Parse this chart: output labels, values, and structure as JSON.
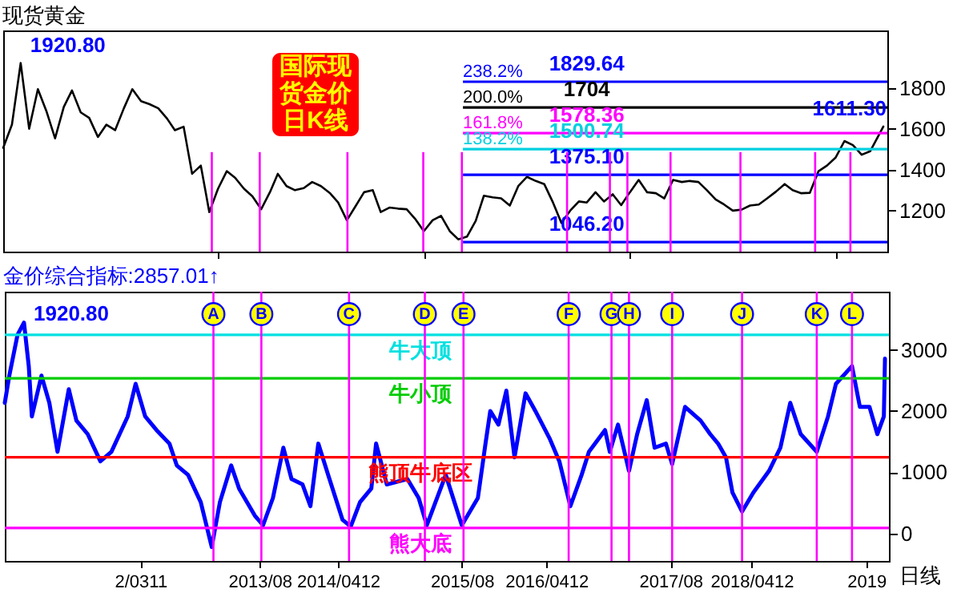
{
  "chart_data": [
    {
      "type": "line",
      "title": "现货黄金",
      "x": [
        "2011-07",
        "2011-08",
        "2011-09",
        "2011-10",
        "2011-11",
        "2011-12",
        "2012-01",
        "2012-02",
        "2012-03",
        "2012-04",
        "2012-05",
        "2012-06",
        "2012-07",
        "2012-08",
        "2012-09",
        "2012-10",
        "2012-11",
        "2012-12",
        "2013-01",
        "2013-02",
        "2013-03",
        "2013-04",
        "2013-05",
        "2013-06",
        "2013-07",
        "2013-08",
        "2013-09",
        "2013-10",
        "2013-11",
        "2013-12",
        "2014-01",
        "2014-02",
        "2014-03",
        "2014-04",
        "2014-05",
        "2014-06",
        "2014-07",
        "2014-08",
        "2014-09",
        "2014-10",
        "2014-11",
        "2014-12",
        "2015-01",
        "2015-02",
        "2015-03",
        "2015-04",
        "2015-05",
        "2015-06",
        "2015-07",
        "2015-08",
        "2015-09",
        "2015-10",
        "2015-11",
        "2015-12",
        "2016-01",
        "2016-02",
        "2016-03",
        "2016-04",
        "2016-05",
        "2016-06",
        "2016-07",
        "2016-08",
        "2016-09",
        "2016-10",
        "2016-11",
        "2016-12",
        "2017-01",
        "2017-02",
        "2017-03",
        "2017-04",
        "2017-05",
        "2017-06",
        "2017-07",
        "2017-08",
        "2017-09",
        "2017-10",
        "2017-11",
        "2017-12",
        "2018-01",
        "2018-02",
        "2018-03",
        "2018-04",
        "2018-05",
        "2018-06",
        "2018-07",
        "2018-08",
        "2018-09",
        "2018-10",
        "2018-11",
        "2018-12",
        "2019-01",
        "2019-02",
        "2019-03",
        "2019-04",
        "2019-05",
        "2019-06",
        "2019-07",
        "2019-08",
        "2019-09",
        "2019-10",
        "2019-11",
        "2019-12",
        "2020-01-17"
      ],
      "series": [
        {
          "color": "#000000",
          "values": [
            1507,
            1620,
            1920.8,
            1600,
            1793,
            1687,
            1553,
            1707,
            1787,
            1680,
            1653,
            1560,
            1620,
            1593,
            1700,
            1793,
            1735,
            1720,
            1700,
            1650,
            1593,
            1610,
            1380,
            1420,
            1193,
            1307,
            1393,
            1360,
            1307,
            1270,
            1207,
            1290,
            1380,
            1320,
            1300,
            1310,
            1340,
            1320,
            1287,
            1240,
            1153,
            1220,
            1290,
            1300,
            1193,
            1215,
            1210,
            1207,
            1160,
            1100,
            1153,
            1175,
            1100,
            1060,
            1073,
            1150,
            1273,
            1265,
            1260,
            1225,
            1320,
            1365,
            1345,
            1330,
            1240,
            1140,
            1200,
            1245,
            1240,
            1290,
            1245,
            1280,
            1227,
            1290,
            1350,
            1290,
            1285,
            1260,
            1350,
            1340,
            1345,
            1340,
            1300,
            1255,
            1230,
            1200,
            1205,
            1225,
            1230,
            1260,
            1293,
            1330,
            1300,
            1285,
            1287,
            1393,
            1420,
            1460,
            1540,
            1520,
            1473,
            1490,
            1611.3
          ]
        }
      ],
      "xticks": [
        {
          "value": "2013-08-01",
          "label": null
        },
        {
          "value": "2015-08-01",
          "label": null
        },
        {
          "value": "2017-08-01",
          "label": null
        },
        {
          "value": "2019-08-01",
          "label": null
        }
      ],
      "xlim": [
        "2011-07-01",
        "2020-01-31"
      ],
      "ylim": [
        1000,
        2080
      ],
      "yticks": [
        1200,
        1400,
        1600,
        1800
      ],
      "tick_labels": "y",
      "ref_lines": [
        {
          "axis": "y",
          "value": 1829.64,
          "label": "1829.64",
          "color": "#0000ff"
        },
        {
          "axis": "y",
          "value": 1704,
          "label": "1704",
          "color": "#000000"
        },
        {
          "axis": "y",
          "value": 1578.36,
          "label": "1578.36",
          "color": "#ff00ff"
        },
        {
          "axis": "y",
          "value": 1500.74,
          "label": "1500.74",
          "color": "#00d0e0"
        },
        {
          "axis": "y",
          "value": 1375.1,
          "label": "1375.10",
          "color": "#0000ff"
        },
        {
          "axis": "y",
          "value": 1046.2,
          "label": "1046.20",
          "color": "#0000ff"
        },
        {
          "axis": "x",
          "value": "2013-07-10",
          "color": "#ff00ff"
        },
        {
          "axis": "x",
          "value": "2013-12-27",
          "color": "#ff00ff"
        },
        {
          "axis": "x",
          "value": "2014-11-03",
          "color": "#ff00ff"
        },
        {
          "axis": "x",
          "value": "2015-07-30",
          "color": "#ff00ff"
        },
        {
          "axis": "x",
          "value": "2015-12-14",
          "color": "#ff00ff"
        },
        {
          "axis": "x",
          "value": "2016-12-21",
          "color": "#ff00ff"
        },
        {
          "axis": "x",
          "value": "2017-05-22",
          "color": "#ff00ff"
        },
        {
          "axis": "x",
          "value": "2017-07-23",
          "color": "#ff00ff"
        },
        {
          "axis": "x",
          "value": "2017-12-23",
          "color": "#ff00ff"
        },
        {
          "axis": "x",
          "value": "2018-08-28",
          "color": "#ff00ff"
        },
        {
          "axis": "x",
          "value": "2019-05-20",
          "color": "#ff00ff"
        },
        {
          "axis": "x",
          "value": "2019-09-22",
          "color": "#ff00ff"
        }
      ],
      "annotations": [
        {
          "text": "1920.80",
          "x": "2011-09",
          "y": 1920.8
        },
        {
          "text": "1611.30",
          "x": "2020-01-17",
          "y": 1611.3
        },
        {
          "text": "238.2%",
          "y": 1829.64
        },
        {
          "text": "200.0%",
          "y": 1704
        },
        {
          "text": "161.8%",
          "y": 1578.36
        },
        {
          "text": "138.2%",
          "y": 1500.74
        },
        "国际现货金价日K线"
      ]
    },
    {
      "type": "line",
      "title": "金价综合指标:2857.01↑",
      "xlabel": "日线",
      "x": [
        "2011-07-01",
        "2011-07-17",
        "2011-08-15",
        "2011-09-07",
        "2011-09-24",
        "2011-10-05",
        "2011-11-08",
        "2011-12-06",
        "2012-01-04",
        "2012-02-13",
        "2012-03-11",
        "2012-04-20",
        "2012-06-04",
        "2012-07-13",
        "2012-09-09",
        "2012-10-07",
        "2012-11-10",
        "2012-12-20",
        "2013-02-04",
        "2013-03-02",
        "2013-04-11",
        "2013-05-26",
        "2013-07-04",
        "2013-08-02",
        "2013-09-11",
        "2013-10-09",
        "2013-12-04",
        "2014-01-02",
        "2014-02-06",
        "2014-03-15",
        "2014-04-13",
        "2014-05-22",
        "2014-06-19",
        "2014-07-17",
        "2014-08-21",
        "2014-10-11",
        "2014-11-09",
        "2014-12-12",
        "2015-01-21",
        "2015-02-07",
        "2015-03-17",
        "2015-05-29",
        "2015-07-08",
        "2015-08-06",
        "2015-10-12",
        "2015-12-08",
        "2016-02-03",
        "2016-03-01",
        "2016-03-18",
        "2016-04-16",
        "2016-05-14",
        "2016-06-12",
        "2016-07-21",
        "2016-08-25",
        "2016-10-14",
        "2016-11-18",
        "2016-12-27",
        "2017-02-05",
        "2017-03-03",
        "2017-04-29",
        "2017-05-16",
        "2017-06-14",
        "2017-07-23",
        "2017-08-21",
        "2017-09-24",
        "2017-10-22",
        "2017-12-01",
        "2017-12-23",
        "2018-02-07",
        "2018-04-03",
        "2018-05-07",
        "2018-06-04",
        "2018-07-02",
        "2018-07-25",
        "2018-08-28",
        "2018-10-07",
        "2018-12-02",
        "2019-01-11",
        "2019-02-15",
        "2019-03-24",
        "2019-05-20",
        "2019-06-29",
        "2019-07-27",
        "2019-09-22",
        "2019-10-20",
        "2019-11-23",
        "2019-12-21",
        "2020-01-13",
        "2020-01-17"
      ],
      "series": [
        {
          "color": "#0000ff",
          "values": [
            2133,
            2578,
            3244,
            3444,
            2733,
            1911,
            2578,
            2133,
            1333,
            2356,
            1844,
            1622,
            1178,
            1333,
            1911,
            2444,
            1911,
            1689,
            1467,
            1111,
            956,
            511,
            -222,
            511,
            1111,
            733,
            289,
            133,
            578,
            1400,
            889,
            800,
            444,
            1467,
            956,
            222,
            111,
            511,
            733,
            1467,
            800,
            889,
            578,
            133,
            956,
            133,
            578,
            1467,
            2000,
            1778,
            2333,
            1244,
            2289,
            2000,
            1556,
            1178,
            444,
            956,
            1333,
            1689,
            1333,
            1778,
            1022,
            1622,
            2178,
            1400,
            1467,
            1133,
            2067,
            1844,
            1622,
            1467,
            1244,
            667,
            356,
            667,
            1022,
            1400,
            2133,
            1622,
            1333,
            1911,
            2444,
            2733,
            2067,
            2067,
            1622,
            1911,
            2857.01
          ]
        }
      ],
      "xlim": [
        "2011-07-01",
        "2020-01-31"
      ],
      "ylim": [
        -450,
        3950
      ],
      "yticks": [
        0,
        1000,
        2000,
        3000
      ],
      "xticks": [
        {
          "value": "2012-10-24",
          "label": "2/0311"
        },
        {
          "value": "2013-12-21",
          "label": "2013/08"
        },
        {
          "value": "2014-09-25",
          "label": "2014/0412"
        },
        {
          "value": "2015-12-08",
          "label": "2015/08"
        },
        {
          "value": "2016-10-03",
          "label": "2016/0412"
        },
        {
          "value": "2017-12-17",
          "label": "2017/08"
        },
        {
          "value": "2018-10-01",
          "label": "2018/0412"
        },
        {
          "value": "2019-11-12",
          "label": "2019"
        }
      ],
      "ref_lines": [
        {
          "axis": "y",
          "value": 3244,
          "label": "牛大顶",
          "color": "#00e0e0"
        },
        {
          "axis": "y",
          "value": 2533,
          "label": "牛小顶",
          "color": "#00cc00"
        },
        {
          "axis": "y",
          "value": 1244,
          "label": "熊顶牛底区",
          "color": "#ff0000"
        },
        {
          "axis": "y",
          "value": 89,
          "label": "熊大底",
          "color": "#ff00ff"
        },
        {
          "axis": "x",
          "value": "2013-07-10",
          "label": "A",
          "color": "#ff00ff"
        },
        {
          "axis": "x",
          "value": "2013-12-27",
          "label": "B",
          "color": "#ff00ff"
        },
        {
          "axis": "x",
          "value": "2014-11-03",
          "label": "C",
          "color": "#ff00ff"
        },
        {
          "axis": "x",
          "value": "2015-07-30",
          "label": "D",
          "color": "#ff00ff"
        },
        {
          "axis": "x",
          "value": "2015-12-14",
          "label": "E",
          "color": "#ff00ff"
        },
        {
          "axis": "x",
          "value": "2016-12-21",
          "label": "F",
          "color": "#ff00ff"
        },
        {
          "axis": "x",
          "value": "2017-05-22",
          "label": "G",
          "color": "#ff00ff"
        },
        {
          "axis": "x",
          "value": "2017-07-23",
          "label": "H",
          "color": "#ff00ff"
        },
        {
          "axis": "x",
          "value": "2017-12-23",
          "label": "I",
          "color": "#ff00ff"
        },
        {
          "axis": "x",
          "value": "2018-08-28",
          "label": "J",
          "color": "#ff00ff"
        },
        {
          "axis": "x",
          "value": "2019-05-20",
          "label": "K",
          "color": "#ff00ff"
        },
        {
          "axis": "x",
          "value": "2019-09-22",
          "label": "L",
          "color": "#ff00ff"
        }
      ],
      "annotations": [
        "1920.80"
      ]
    }
  ]
}
